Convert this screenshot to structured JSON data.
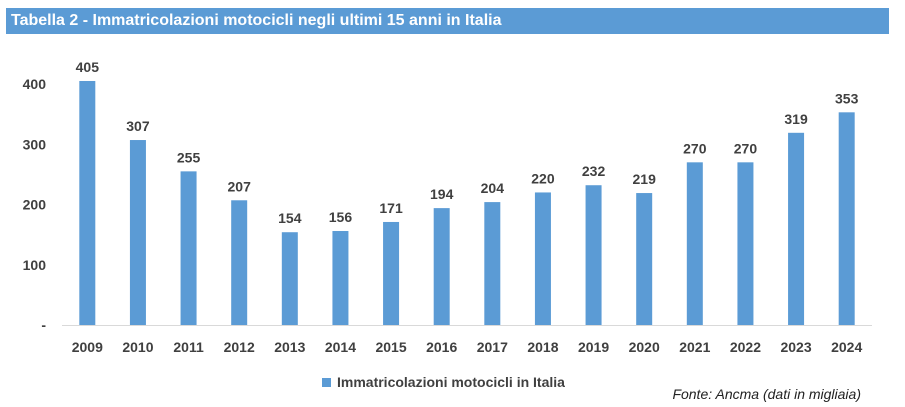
{
  "title": "Tabella 2 - Immatricolazioni motocicli negli ultimi 15 anni in Italia",
  "source": "Fonte: Ancma (dati in migliaia)",
  "colors": {
    "title_bg": "#5b9bd5",
    "bar": "#5b9bd5",
    "axis_text": "#404040"
  },
  "chart_data": {
    "type": "bar",
    "title": "Tabella 2 - Immatricolazioni motocicli negli ultimi 15 anni in Italia",
    "categories": [
      "2009",
      "2010",
      "2011",
      "2012",
      "2013",
      "2014",
      "2015",
      "2016",
      "2017",
      "2018",
      "2019",
      "2020",
      "2021",
      "2022",
      "2023",
      "2024"
    ],
    "series": [
      {
        "name": "Immatricolazioni motocicli in Italia",
        "values": [
          405,
          307,
          255,
          207,
          154,
          156,
          171,
          194,
          204,
          220,
          232,
          219,
          270,
          270,
          319,
          353
        ]
      }
    ],
    "ylim": [
      0,
      400
    ],
    "yticks": [
      0,
      100,
      200,
      300,
      400
    ],
    "ytick_labels": [
      "-",
      "100",
      "200",
      "300",
      "400"
    ],
    "grid": false,
    "data_labels": true,
    "legend_position": "bottom"
  }
}
